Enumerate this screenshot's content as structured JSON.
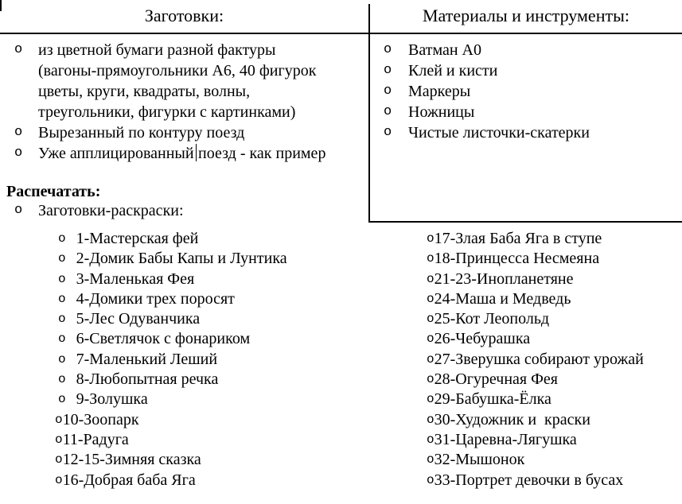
{
  "colors": {
    "text": "#000000",
    "background": "#ffffff",
    "border": "#000000"
  },
  "bullets": {
    "char": "o"
  },
  "table": {
    "headers": {
      "left": "Заготовки:",
      "right": "Материалы и инструменты:"
    },
    "blanks": {
      "item1": {
        "line1": "из цветной бумаги разной фактуры",
        "line2": "(вагоны-прямоугольники А6, 40 фигурок",
        "line3": "цветы, круги, квадраты, волны,",
        "line4": "треугольники, фигурки с картинками)"
      },
      "item2": "Вырезанный по контуру поезд",
      "item3": {
        "before_caret": "Уже апплицированный",
        "after_caret": "поезд - как пример"
      }
    },
    "materials": {
      "items": [
        "Ватман А0",
        "Клей и кисти",
        "Маркеры",
        "Ножницы",
        "Чистые листочки-скатерки"
      ]
    }
  },
  "print_section": {
    "heading": "Распечатать:",
    "subitem": "Заготовки-раскраски:",
    "coloring_left": [
      "1-Мастерская фей",
      "2-Домик Бабы Капы и Лунтика",
      "3-Маленькая Фея",
      "4-Домики трех поросят",
      "5-Лес Одуванчика",
      "6-Светлячок с фонариком",
      "7-Маленький Леший",
      "8-Любопытная речка",
      "9-Золушка",
      "10-Зоопарк",
      "11-Радуга",
      "12-15-Зимняя сказка",
      "16-Добрая баба Яга"
    ],
    "coloring_right": [
      "17-Злая Баба Яга в ступе",
      "18-Принцесса Несмеяна",
      "21-23-Инопланетяне",
      "24-Маша и Медведь",
      "25-Кот Леопольд",
      "26-Чебурашка",
      "27-Зверушка собирают урожай",
      "28-Огуречная Фея",
      "29-Бабушка-Ёлка",
      "30-Художник и  краски",
      "31-Царевна-Лягушка",
      "32-Мышонок",
      "33-Портрет девочки в бусах"
    ]
  }
}
